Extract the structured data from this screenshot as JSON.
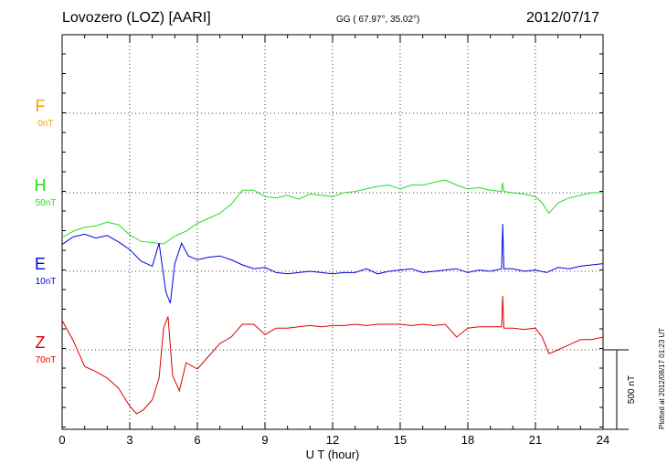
{
  "header": {
    "station": "Lovozero (LOZ)  [AARI]",
    "coords": "GG ( 67.97°,  35.02°)",
    "date": "2012/07/17"
  },
  "footer": {
    "plotted": "Plotted at 2012/08/17 01:23 UT"
  },
  "chart_data": {
    "type": "line",
    "xlabel": "U T (hour)",
    "xlim": [
      0,
      24
    ],
    "xticks": [
      "0",
      "3",
      "6",
      "9",
      "12",
      "15",
      "18",
      "21",
      "24"
    ],
    "scale_bar": "500 nT",
    "grid": true,
    "series": [
      {
        "name": "F",
        "baseline": "0nT",
        "color": "#f5a000",
        "t": [],
        "v": []
      },
      {
        "name": "H",
        "baseline": "50nT",
        "color": "#22dd22",
        "t": [
          0,
          0.5,
          1,
          1.5,
          2,
          2.5,
          3,
          3.5,
          4,
          4.5,
          5,
          5.5,
          6,
          6.5,
          7,
          7.5,
          8,
          8.5,
          9,
          9.5,
          10,
          10.5,
          11,
          11.5,
          12,
          12.5,
          13,
          13.5,
          14,
          14.5,
          15,
          15.5,
          16,
          16.5,
          17,
          17.5,
          18,
          18.5,
          19,
          19.5,
          19.55,
          19.6,
          20,
          20.5,
          21,
          21.3,
          21.6,
          22,
          22.5,
          23,
          23.5,
          24
        ],
        "v": [
          -350,
          -300,
          -270,
          -260,
          -230,
          -250,
          -330,
          -380,
          -390,
          -400,
          -340,
          -300,
          -240,
          -200,
          -160,
          -90,
          20,
          20,
          -30,
          -40,
          -20,
          -50,
          -10,
          -20,
          -30,
          0,
          10,
          30,
          50,
          60,
          30,
          60,
          60,
          80,
          100,
          60,
          30,
          40,
          20,
          10,
          80,
          10,
          0,
          -10,
          -30,
          -80,
          -160,
          -80,
          -40,
          -20,
          0,
          0
        ]
      },
      {
        "name": "E",
        "baseline": "10nT",
        "color": "#0000dd",
        "t": [
          0,
          0.5,
          1,
          1.5,
          2,
          2.5,
          3,
          3.5,
          4,
          4.3,
          4.6,
          4.8,
          5,
          5.3,
          5.6,
          6,
          6.5,
          7,
          7.5,
          8,
          8.5,
          9,
          9.5,
          10,
          10.5,
          11,
          11.5,
          12,
          12.5,
          13,
          13.5,
          14,
          14.5,
          15,
          15.5,
          16,
          16.5,
          17,
          17.5,
          18,
          18.5,
          19,
          19.5,
          19.55,
          19.6,
          20,
          20.5,
          21,
          21.5,
          22,
          22.5,
          23,
          23.5,
          24
        ],
        "v": [
          210,
          270,
          290,
          260,
          280,
          230,
          170,
          80,
          40,
          220,
          -160,
          -250,
          60,
          220,
          120,
          90,
          110,
          120,
          90,
          50,
          20,
          30,
          -10,
          -20,
          -10,
          0,
          -10,
          -20,
          -10,
          -10,
          20,
          -20,
          0,
          10,
          20,
          -10,
          0,
          10,
          20,
          -10,
          10,
          0,
          20,
          370,
          20,
          20,
          0,
          10,
          -10,
          30,
          20,
          40,
          50,
          60
        ]
      },
      {
        "name": "Z",
        "baseline": "70nT",
        "color": "#dd0000",
        "t": [
          0,
          0.5,
          1,
          1.5,
          2,
          2.5,
          3,
          3.3,
          3.6,
          4,
          4.3,
          4.5,
          4.7,
          4.9,
          5.2,
          5.5,
          6,
          6.5,
          7,
          7.5,
          8,
          8.5,
          9,
          9.5,
          10,
          10.5,
          11,
          11.5,
          12,
          12.5,
          13,
          13.5,
          14,
          14.5,
          15,
          15.5,
          16,
          16.5,
          17,
          17.5,
          18,
          18.5,
          19,
          19.5,
          19.55,
          19.6,
          20,
          20.5,
          21,
          21.3,
          21.6,
          22,
          22.5,
          23,
          23.5,
          24
        ],
        "v": [
          230,
          70,
          -130,
          -170,
          -220,
          -300,
          -440,
          -500,
          -470,
          -390,
          -220,
          170,
          260,
          -200,
          -320,
          -100,
          -150,
          -50,
          50,
          100,
          200,
          200,
          120,
          170,
          170,
          180,
          190,
          180,
          190,
          190,
          200,
          190,
          200,
          200,
          200,
          190,
          200,
          190,
          200,
          100,
          170,
          180,
          180,
          180,
          420,
          170,
          170,
          160,
          170,
          100,
          -30,
          0,
          40,
          80,
          80,
          100
        ]
      }
    ]
  }
}
